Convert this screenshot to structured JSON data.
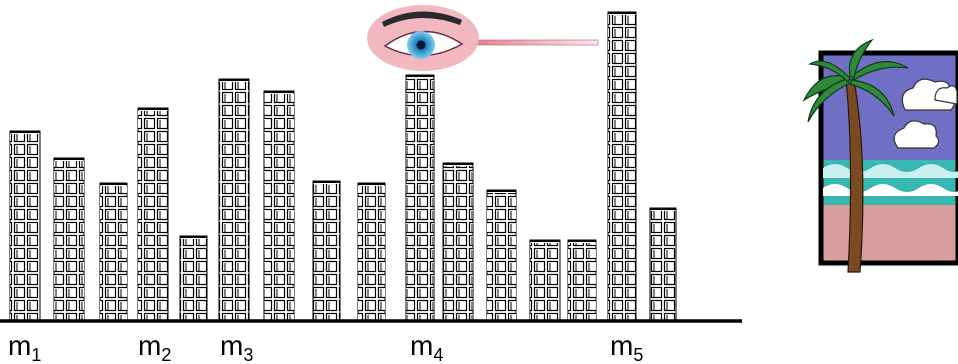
{
  "labels": [
    {
      "base": "m",
      "sub": "1"
    },
    {
      "base": "m",
      "sub": "2"
    },
    {
      "base": "m",
      "sub": "3"
    },
    {
      "base": "m",
      "sub": "4"
    },
    {
      "base": "m",
      "sub": "5"
    }
  ]
}
